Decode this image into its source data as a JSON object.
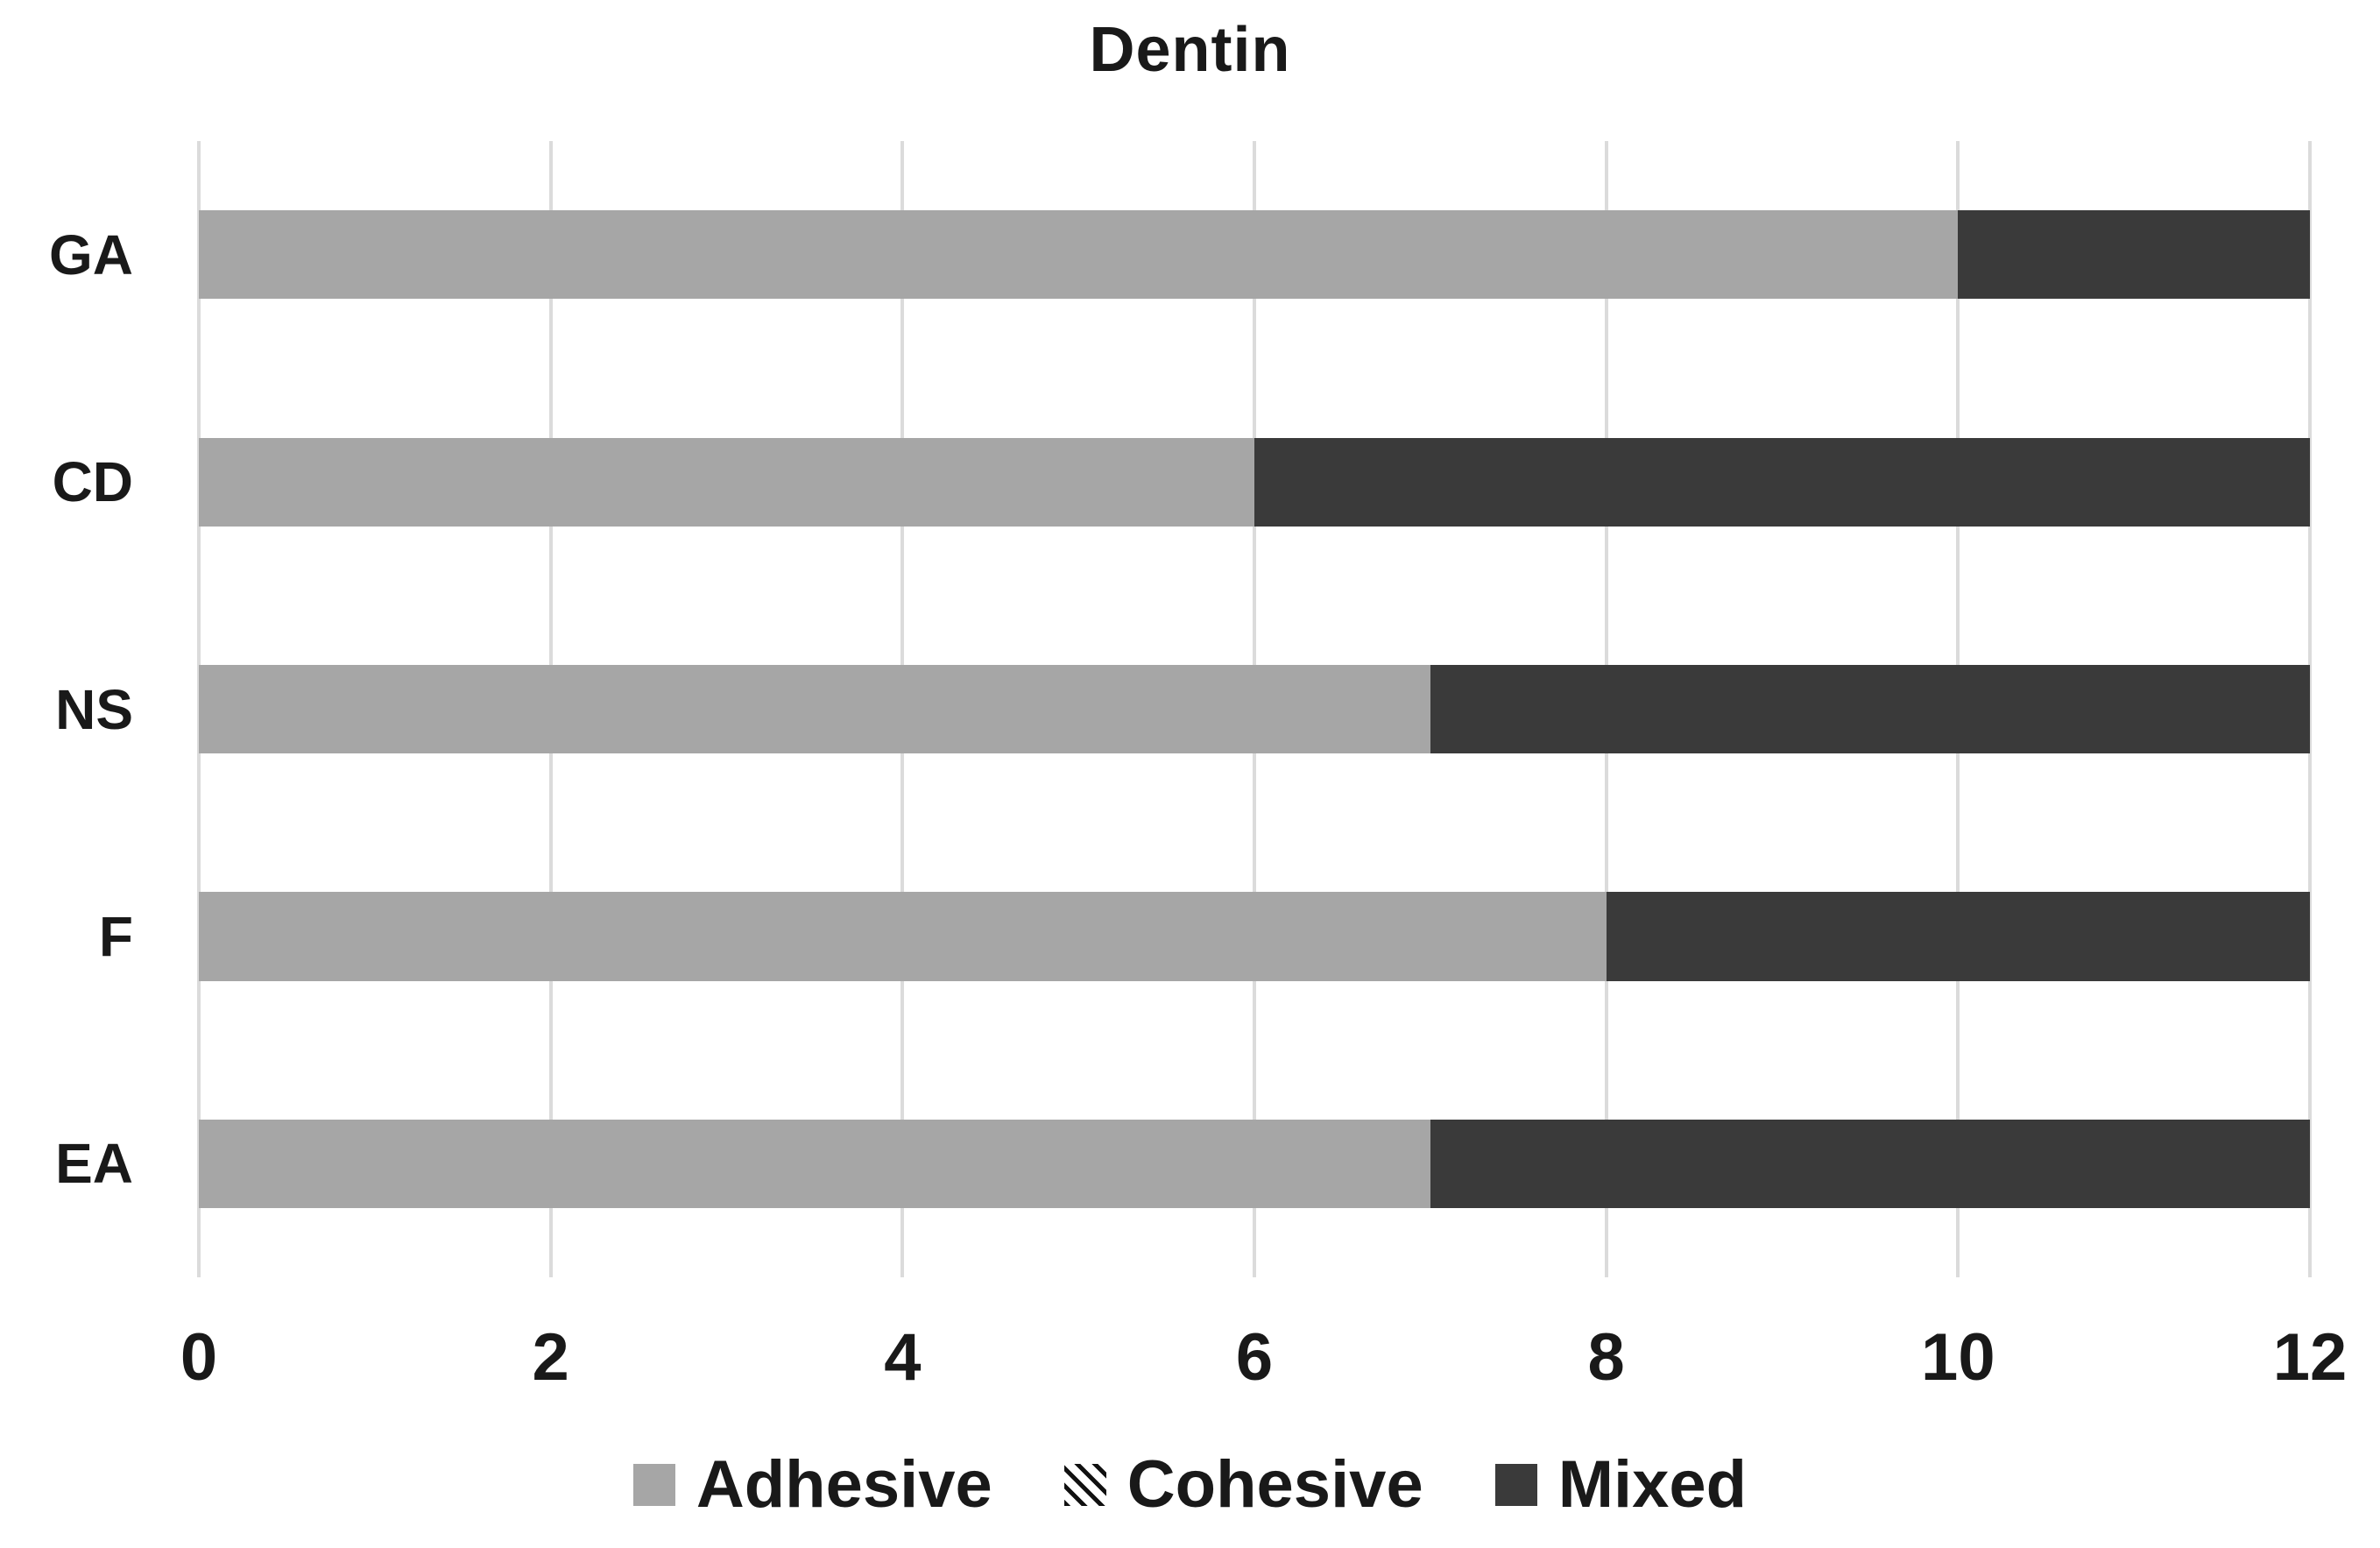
{
  "chart_data": {
    "type": "bar",
    "orientation": "horizontal",
    "stacked": true,
    "title": "Dentin",
    "categories": [
      "GA",
      "CD",
      "NS",
      "F",
      "EA"
    ],
    "series": [
      {
        "name": "Adhesive",
        "color": "#a6a6a6",
        "pattern": "solid",
        "values": [
          10,
          6,
          7,
          8,
          7
        ]
      },
      {
        "name": "Cohesive",
        "color": "#111111",
        "pattern": "diagonal-stripes",
        "values": [
          0,
          0,
          0,
          0,
          0
        ]
      },
      {
        "name": "Mixed",
        "color": "#3a3a3a",
        "pattern": "solid",
        "values": [
          2,
          6,
          5,
          4,
          5
        ]
      }
    ],
    "xlim": [
      0,
      12
    ],
    "x_ticks": [
      "0",
      "2",
      "4",
      "6",
      "8",
      "10",
      "12"
    ],
    "grid": "vertical",
    "gridline_color": "#dbdbdb",
    "legend_position": "bottom",
    "text_color": "#191919",
    "background_color": "#ffffff"
  }
}
